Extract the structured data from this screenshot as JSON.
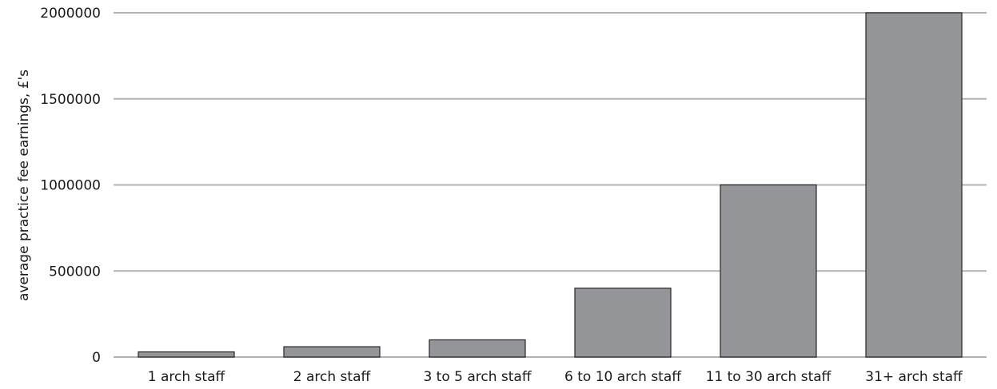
{
  "chart_data": {
    "type": "bar",
    "categories": [
      "1 arch staff",
      "2 arch staff",
      "3 to 5 arch staff",
      "6 to 10 arch staff",
      "11 to 30 arch staff",
      "31+ arch staff"
    ],
    "values": [
      30000,
      60000,
      100000,
      400000,
      1000000,
      2000000
    ],
    "ylabel": "average practice fee earnings, £'s",
    "xlabel": "",
    "ylim": [
      0,
      2000000
    ],
    "yticks": [
      "0",
      "500000",
      "1000000",
      "1500000",
      "2000000"
    ],
    "ytick_values": [
      0,
      500000,
      1000000,
      1500000,
      2000000
    ],
    "grid": true,
    "legend": "none",
    "colors": {
      "bar_fill": "#939598",
      "bar_stroke": "#262626",
      "grid": "#b3b3b3"
    }
  }
}
